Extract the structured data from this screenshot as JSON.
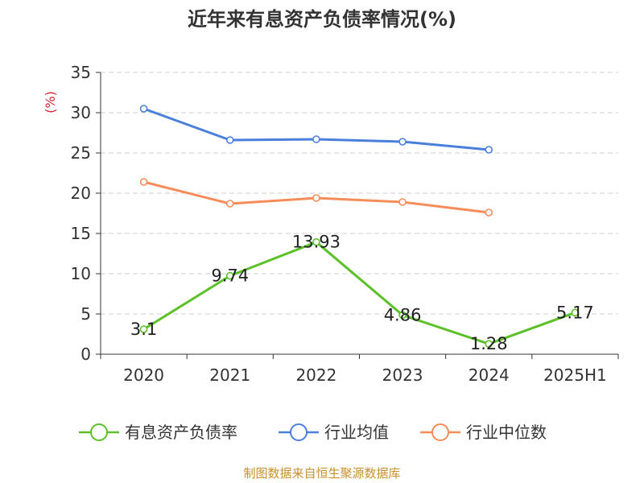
{
  "chart_data": {
    "type": "line",
    "title": "近年来有息资产负债率情况(%)",
    "ylabel": "(%)",
    "ylim": [
      0,
      35
    ],
    "yticks": [
      "0",
      "5",
      "10",
      "15",
      "20",
      "25",
      "30",
      "35"
    ],
    "categories": [
      "2020",
      "2021",
      "2022",
      "2023",
      "2024",
      "2025H1"
    ],
    "grid": true,
    "legend_position": "bottom",
    "series": [
      {
        "name": "有息资产负债率",
        "color": "#5cc028",
        "values": [
          3.1,
          9.74,
          13.93,
          4.86,
          1.28,
          5.17
        ],
        "labels": [
          "3.1",
          "9.74",
          "13.93",
          "4.86",
          "1.28",
          "5.17"
        ]
      },
      {
        "name": "行业均值",
        "color": "#4a7fdb",
        "values": [
          30.5,
          26.6,
          26.7,
          26.4,
          25.4,
          null
        ]
      },
      {
        "name": "行业中位数",
        "color": "#f58c5a",
        "values": [
          21.4,
          18.7,
          19.4,
          18.9,
          17.6,
          null
        ]
      }
    ]
  },
  "source": "制图数据来自恒生聚源数据库",
  "colors": {
    "axis": "#333333",
    "grid": "#cccccc",
    "ylabel": "#d9262c",
    "source": "#c8902a"
  }
}
